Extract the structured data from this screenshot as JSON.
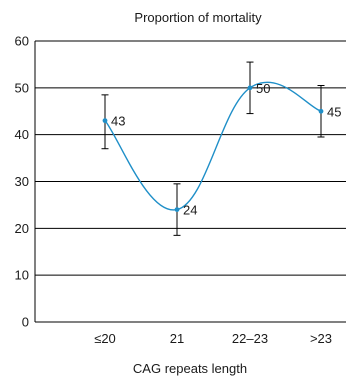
{
  "chart_data": {
    "type": "line",
    "title": "Proportion of mortality",
    "xlabel": "CAG repeats length",
    "ylabel": "",
    "categories": [
      "≤20",
      "21",
      "22–23",
      ">23"
    ],
    "ylim": [
      0,
      60
    ],
    "yticks": [
      0,
      10,
      20,
      30,
      40,
      50,
      60
    ],
    "grid": true,
    "smooth": true,
    "series": [
      {
        "values": [
          43,
          24,
          50,
          45
        ],
        "error_low": [
          37,
          18.5,
          44.5,
          39.5
        ],
        "error_high": [
          48.5,
          29.5,
          55.5,
          50.5
        ],
        "data_labels": [
          "43",
          "24",
          "50",
          "45"
        ],
        "color": "#1f8fc8"
      }
    ]
  }
}
